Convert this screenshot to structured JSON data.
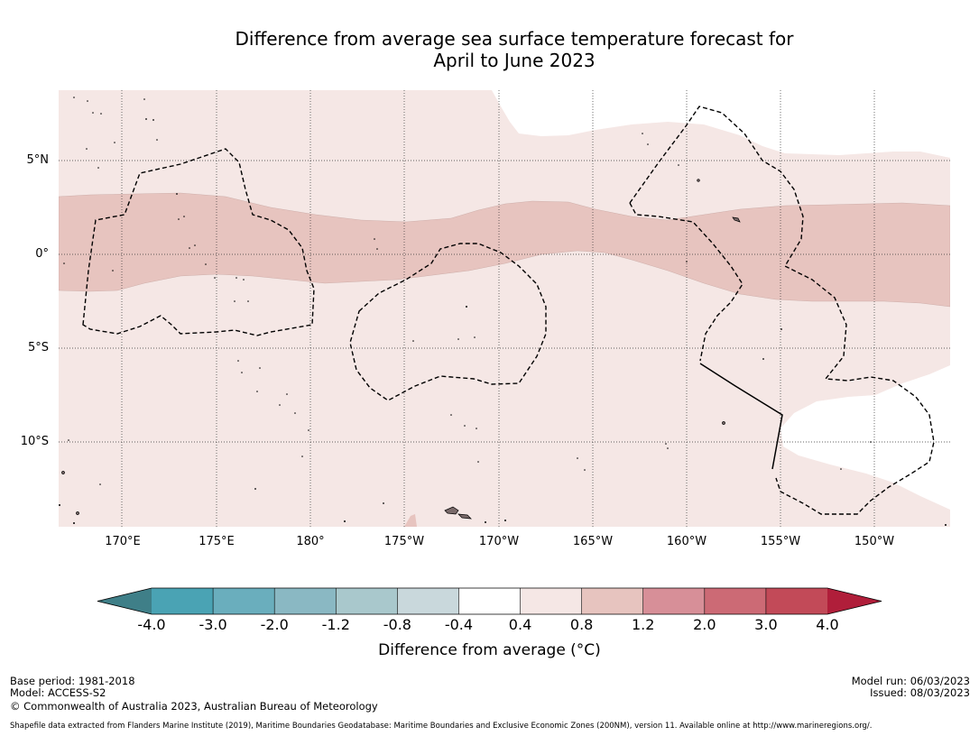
{
  "title": {
    "line1": "Difference from average sea surface temperature forecast for",
    "line2": "April to June 2023"
  },
  "map": {
    "lat_labels": [
      "5°N",
      "0°",
      "5°S",
      "10°S"
    ],
    "lon_labels": [
      "170°E",
      "175°E",
      "180°",
      "175°W",
      "170°W",
      "165°W",
      "160°W",
      "155°W",
      "150°W"
    ],
    "colors": {
      "band_0_4_0_8": "#f5e7e5",
      "band_0_8_1_2": "#e7c4bf",
      "band_neutral": "#ffffff",
      "land": "#7a6a6a"
    }
  },
  "colorbar": {
    "ticks": [
      "-4.0",
      "-3.0",
      "-2.0",
      "-1.2",
      "-0.8",
      "-0.4",
      "0.4",
      "0.8",
      "1.2",
      "2.0",
      "3.0",
      "4.0"
    ],
    "low_extend_color": "#3f7f88",
    "high_extend_color": "#b01e3a",
    "colors": [
      "#4aa3b4",
      "#6aaebd",
      "#8ab8c3",
      "#a9c8cc",
      "#c9d8dc",
      "#ffffff",
      "#f5e7e5",
      "#e7c4bf",
      "#d78f98",
      "#cc6a75",
      "#c24a58"
    ],
    "label": "Difference from average ($^\\circ$C)",
    "label_display": "Difference from average (°C)"
  },
  "footer": {
    "base_period": "Base period: 1981-2018",
    "model": "Model: ACCESS-S2",
    "copyright": "© Commonwealth of Australia 2023, Australian Bureau of Meteorology",
    "model_run": "Model run: 06/03/2023",
    "issued": "Issued: 08/03/2023",
    "shapefile": "Shapefile data extracted from Flanders Marine Institute (2019), Maritime Boundaries Geodatabase: Maritime Boundaries and Exclusive Economic Zones (200NM), version 11. Available online at http://www.marineregions.org/."
  }
}
